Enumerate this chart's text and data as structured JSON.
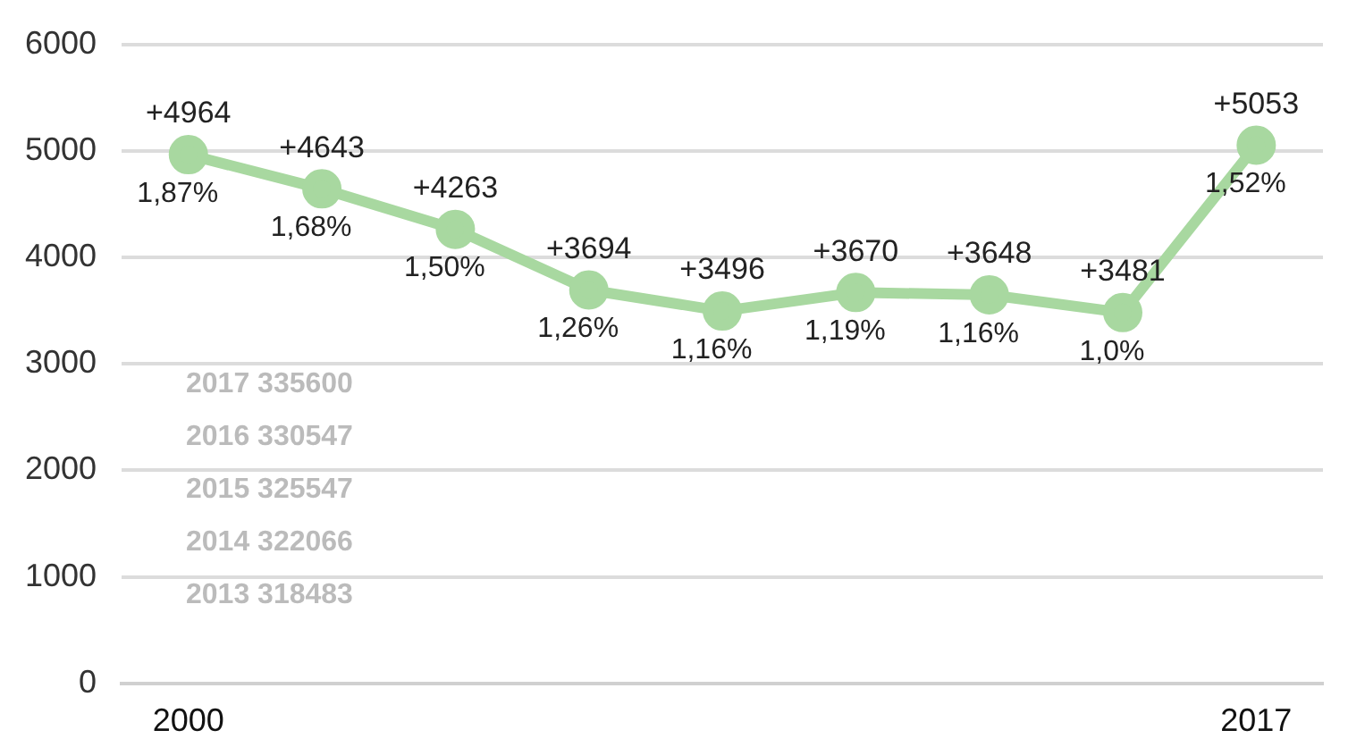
{
  "chart_data": {
    "type": "line",
    "categories": [
      "2000",
      null,
      null,
      null,
      null,
      null,
      null,
      null,
      "2017"
    ],
    "series": [
      {
        "color": "#a8d8a0",
        "values": [
          4964,
          4643,
          4263,
          3694,
          3496,
          3670,
          3648,
          3481,
          5053
        ],
        "value_labels": [
          "+4964",
          "+4643",
          "+4263",
          "+3694",
          "+3496",
          "+3670",
          "+3648",
          "+3481",
          "+5053"
        ]
      }
    ],
    "ylim": [
      0,
      6000
    ],
    "yticks": [
      0,
      1000,
      2000,
      3000,
      4000,
      5000,
      6000
    ],
    "grid": "y",
    "legend": false,
    "marker": "circle",
    "line_style": "solid",
    "annotations": [
      {
        "text": "1,87%",
        "y": 4964
      },
      {
        "text": "1,68%",
        "y": 4643
      },
      {
        "text": "1,50%",
        "y": 4263
      },
      {
        "text": "1,26%",
        "y": 3694
      },
      {
        "text": "1,16%",
        "y": 3496
      },
      {
        "text": "1,19%",
        "y": 3670
      },
      {
        "text": "1,16%",
        "y": 3648
      },
      {
        "text": "1,0%",
        "y": 3481
      },
      {
        "text": "1,52%",
        "y": 5053
      },
      "2017 335600",
      "2016 330547",
      "2015 325547",
      "2014 322066",
      "2013 318483"
    ]
  }
}
